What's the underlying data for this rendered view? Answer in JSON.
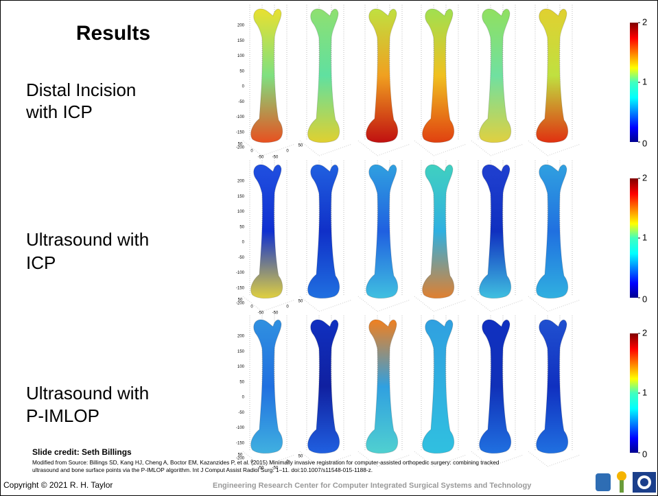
{
  "title": "Results",
  "rows": [
    {
      "label_lines": [
        "Distal Incision",
        "with ICP"
      ],
      "colorbar_ticks": [
        2,
        1,
        0
      ],
      "z_ticks": [
        200,
        150,
        100,
        50,
        0,
        -50,
        -100,
        -150,
        -200
      ],
      "x_ticks": [
        50,
        0,
        -50
      ],
      "y_ticks": [
        -50,
        0,
        50
      ]
    },
    {
      "label_lines": [
        "Ultrasound with",
        "ICP"
      ],
      "colorbar_ticks": [
        2,
        1,
        0
      ],
      "z_ticks": [
        200,
        150,
        100,
        50,
        0,
        -50,
        -100,
        -150,
        -200
      ],
      "x_ticks": [
        50,
        0,
        -50
      ],
      "y_ticks": [
        -50,
        0,
        50
      ]
    },
    {
      "label_lines": [
        "Ultrasound with",
        "P-IMLOP"
      ],
      "colorbar_ticks": [
        2,
        1,
        0
      ],
      "z_ticks": [
        200,
        150,
        100,
        50,
        0,
        -50,
        -100,
        -150,
        -200
      ],
      "x_ticks": [
        50,
        0,
        -50
      ],
      "y_ticks": [
        -50,
        0,
        50
      ]
    }
  ],
  "footer": {
    "credit": "Slide credit: Seth Billings",
    "citation_lines": [
      "Modified from Source: Billings SD, Kang HJ, Cheng A, Boctor EM, Kazanzides P, et al. (2015) Minimally invasive registration for computer-assisted orthopedic surgery: combining tracked",
      "ultrasound and bone surface points via the P-IMLOP algorithm. Int J Comput Assist Radiol Surg: 1–11. doi:10.1007/s11548-015-1188-z."
    ],
    "copyright": "Copyright © 2021 R. H. Taylor",
    "center": "Engineering Research Center for Computer Integrated Surgical Systems and Technology"
  }
}
